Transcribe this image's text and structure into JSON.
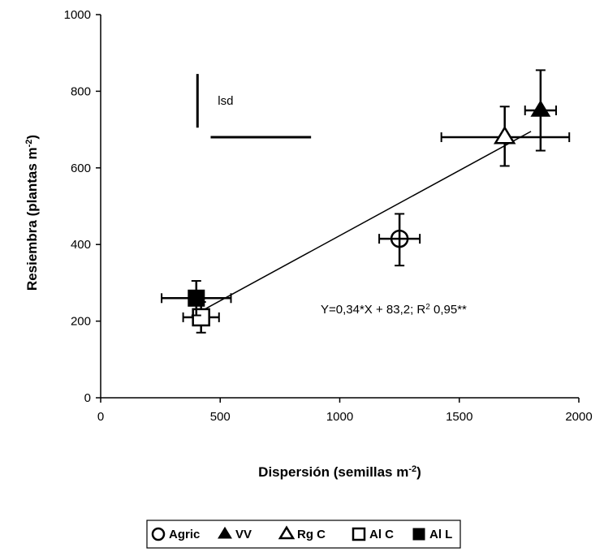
{
  "chart_data": {
    "type": "scatter",
    "xlabel": "Dispersión (semillas m",
    "xlabel_sup": "-2",
    "xlabel_end": ")",
    "ylabel": "Resiembra (plantas m",
    "ylabel_sup": "-2",
    "ylabel_end": ")",
    "xlim": [
      0,
      2000
    ],
    "ylim": [
      0,
      1000
    ],
    "x_ticks": [
      0,
      500,
      1000,
      1500,
      2000
    ],
    "y_ticks": [
      0,
      200,
      400,
      600,
      800,
      1000
    ],
    "x_tick_labels": [
      "0",
      "500",
      "1000",
      "1500",
      "2000"
    ],
    "y_tick_labels": [
      "0",
      "200",
      "400",
      "600",
      "800",
      "1000"
    ],
    "series": [
      {
        "name": "Agric",
        "marker": "open-circle",
        "x": 1250,
        "y": 415,
        "x_err": [
          1165,
          1335
        ],
        "y_err": [
          345,
          480
        ]
      },
      {
        "name": "VV",
        "marker": "filled-triangle",
        "x": 1840,
        "y": 750,
        "x_err": [
          1775,
          1905
        ],
        "y_err": [
          645,
          855
        ]
      },
      {
        "name": "Rg C",
        "marker": "open-triangle",
        "x": 1690,
        "y": 680,
        "x_err": [
          1425,
          1960
        ],
        "y_err": [
          605,
          760
        ]
      },
      {
        "name": "Al C",
        "marker": "open-square",
        "x": 420,
        "y": 210,
        "x_err": [
          345,
          495
        ],
        "y_err": [
          170,
          250
        ]
      },
      {
        "name": "Al L",
        "marker": "filled-square",
        "x": 400,
        "y": 260,
        "x_err": [
          255,
          545
        ],
        "y_err": [
          215,
          305
        ]
      }
    ],
    "regression": {
      "slope": 0.34,
      "intercept": 83.2,
      "x_range": [
        420,
        1800
      ]
    },
    "equation_text": "Y=0,34*X + 83,2; R",
    "equation_sup": "2",
    "equation_end": " 0,95**",
    "lsd": {
      "label": "lsd",
      "vertical": {
        "x": 405,
        "y": [
          705,
          845
        ]
      },
      "horizontal": {
        "y": 680,
        "x": [
          460,
          880
        ]
      }
    },
    "legend": {
      "placement": "bottom",
      "entries": [
        "Agric",
        "VV",
        "Rg C",
        "Al C",
        "Al L"
      ]
    }
  }
}
